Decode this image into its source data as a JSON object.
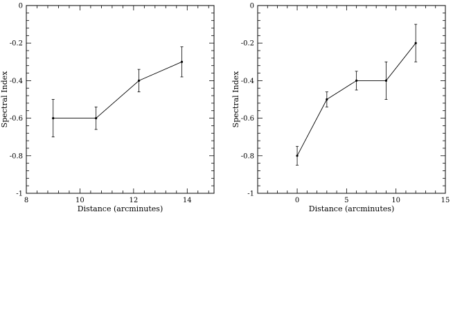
{
  "chart_data": [
    {
      "type": "line",
      "title": "",
      "xlabel": "Distance (arcminutes)",
      "ylabel": "Spectral Index",
      "xlim": [
        8,
        15
      ],
      "ylim": [
        -1,
        0
      ],
      "xticks": [
        8,
        10,
        12,
        14
      ],
      "yticks": [
        0,
        -0.2,
        -0.4,
        -0.6,
        -0.8,
        -1
      ],
      "xtick_labels": [
        "8",
        "10",
        "12",
        "14"
      ],
      "ytick_labels": [
        "0",
        "-0.2",
        "-0.4",
        "-0.6",
        "-0.8",
        "-1"
      ],
      "grid": false,
      "series": [
        {
          "x": [
            9.0,
            10.6,
            12.2,
            13.8
          ],
          "y": [
            -0.6,
            -0.6,
            -0.4,
            -0.3
          ],
          "yerr": [
            0.1,
            0.06,
            0.06,
            0.08
          ]
        }
      ]
    },
    {
      "type": "line",
      "title": "",
      "xlabel": "Distance (arcminutes)",
      "ylabel": "Spectral Index",
      "xlim": [
        -4,
        15
      ],
      "ylim": [
        -1,
        0
      ],
      "xticks": [
        0,
        5,
        10,
        15
      ],
      "yticks": [
        0,
        -0.2,
        -0.4,
        -0.6,
        -0.8,
        -1
      ],
      "xtick_labels": [
        "0",
        "5",
        "10",
        "15"
      ],
      "ytick_labels": [
        "0",
        "-0.2",
        "-0.4",
        "-0.6",
        "-0.8",
        "-1"
      ],
      "grid": false,
      "series": [
        {
          "x": [
            0,
            3,
            6,
            9,
            12
          ],
          "y": [
            -0.8,
            -0.5,
            -0.4,
            -0.4,
            -0.2
          ],
          "yerr": [
            0.05,
            0.04,
            0.05,
            0.1,
            0.1
          ]
        }
      ]
    }
  ]
}
